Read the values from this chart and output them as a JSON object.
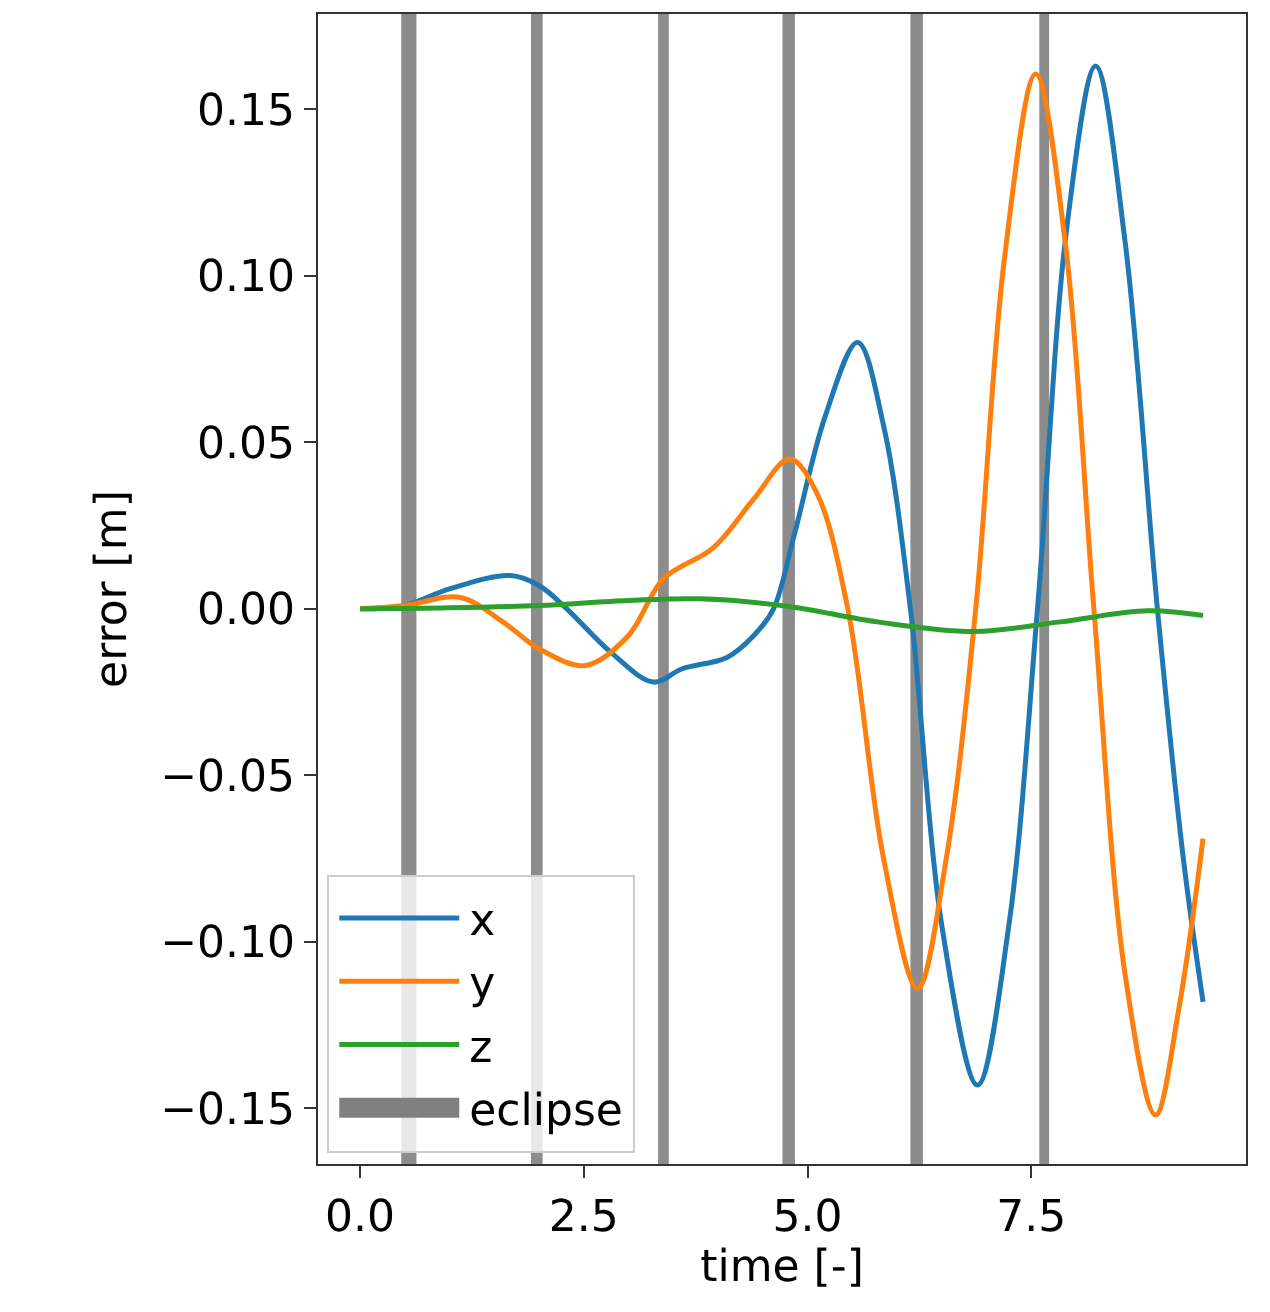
{
  "chart_data": {
    "type": "line",
    "xlabel": "time [-]",
    "ylabel": "error [m]",
    "xlim": [
      -0.47,
      9.9
    ],
    "ylim": [
      -0.1667,
      0.1786
    ],
    "xticks": [
      {
        "value": 0,
        "label": "0.0"
      },
      {
        "value": 2.5,
        "label": "2.5"
      },
      {
        "value": 5,
        "label": "5.0"
      },
      {
        "value": 7.5,
        "label": "7.5"
      }
    ],
    "yticks": [
      {
        "value": -0.15,
        "label": "−0.15"
      },
      {
        "value": -0.1,
        "label": "−0.10"
      },
      {
        "value": -0.05,
        "label": "−0.05"
      },
      {
        "value": 0,
        "label": "0.00"
      },
      {
        "value": 0.05,
        "label": "0.05"
      },
      {
        "value": 0.1,
        "label": "0.10"
      },
      {
        "value": 0.15,
        "label": "0.15"
      }
    ],
    "grid": false,
    "legend": "bottom left",
    "marker": "none",
    "line_style": "solid",
    "series": [
      {
        "name": "x",
        "color": "#1f77b4",
        "x": [
          0,
          0.5,
          1.0,
          1.68,
          2.0,
          2.31,
          2.8,
          3.28,
          3.6,
          4.1,
          4.4,
          4.62,
          4.85,
          5.2,
          5.56,
          5.85,
          6.15,
          6.5,
          6.9,
          7.25,
          7.57,
          7.9,
          8.22,
          8.55,
          8.91,
          9.2,
          9.42
        ],
        "values": [
          0,
          0.001,
          0.006,
          0.01,
          0.007,
          0,
          -0.013,
          -0.022,
          -0.018,
          -0.0146,
          -0.008,
          0,
          0.022,
          0.058,
          0.08,
          0.055,
          0,
          -0.095,
          -0.143,
          -0.095,
          0,
          0.115,
          0.163,
          0.11,
          0,
          -0.075,
          -0.118
        ]
      },
      {
        "name": "y",
        "color": "#ff7f0e",
        "x": [
          0,
          0.5,
          1.12,
          1.6,
          2.0,
          2.52,
          3.0,
          3.39,
          3.95,
          4.4,
          4.8,
          5.1,
          5.45,
          5.85,
          6.23,
          6.55,
          6.88,
          7.2,
          7.55,
          7.88,
          8.2,
          8.55,
          8.89,
          9.15,
          9.42
        ],
        "values": [
          0,
          0.001,
          0.0034,
          -0.004,
          -0.012,
          -0.017,
          -0.008,
          0.009,
          0.0184,
          0.033,
          0.045,
          0.035,
          0,
          -0.075,
          -0.114,
          -0.075,
          0,
          0.105,
          0.1606,
          0.11,
          0,
          -0.11,
          -0.152,
          -0.12,
          -0.069
        ]
      },
      {
        "name": "z",
        "color": "#2ca02c",
        "x": [
          0,
          1,
          2,
          3,
          3.8,
          4.77,
          5.8,
          6.86,
          7.8,
          8.8,
          9.42
        ],
        "values": [
          0,
          0.0003,
          0.001,
          0.0025,
          0.003,
          0.0008,
          -0.004,
          -0.0068,
          -0.004,
          -0.0006,
          -0.002
        ]
      }
    ],
    "bands": [
      {
        "axis": "x",
        "from": 0.46,
        "to": 0.63,
        "label": "eclipse",
        "color": "#808080"
      },
      {
        "axis": "x",
        "from": 1.91,
        "to": 2.04,
        "color": "#808080"
      },
      {
        "axis": "x",
        "from": 3.33,
        "to": 3.45,
        "color": "#808080"
      },
      {
        "axis": "x",
        "from": 4.72,
        "to": 4.86,
        "color": "#808080"
      },
      {
        "axis": "x",
        "from": 6.15,
        "to": 6.29,
        "color": "#808080"
      },
      {
        "axis": "x",
        "from": 7.59,
        "to": 7.7,
        "color": "#808080"
      }
    ]
  }
}
